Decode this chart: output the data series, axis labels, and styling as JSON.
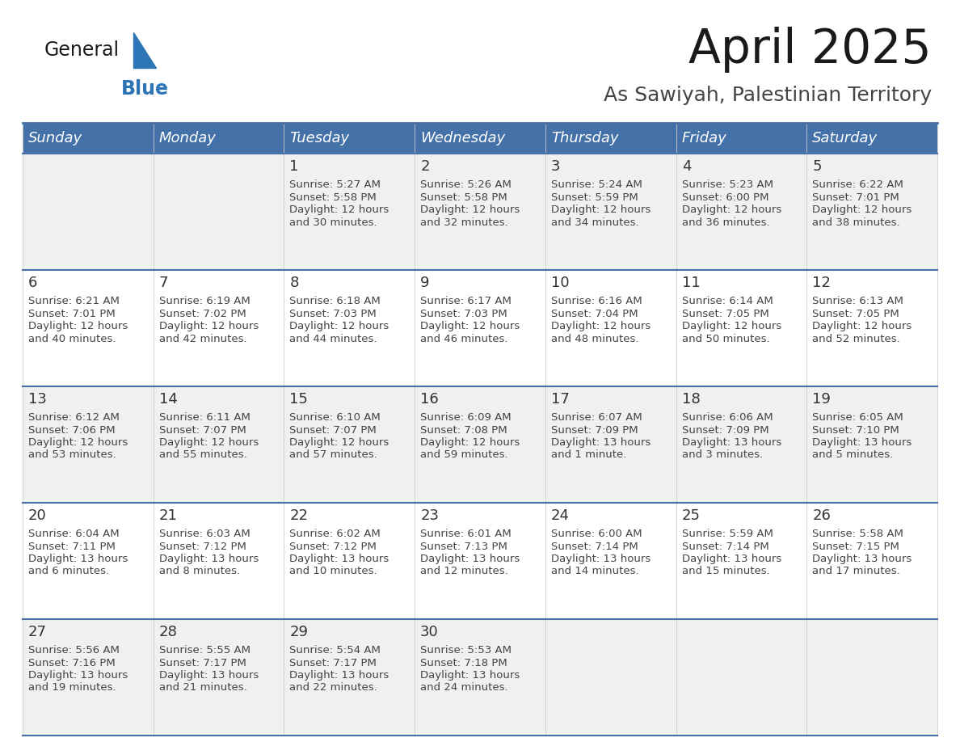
{
  "title": "April 2025",
  "subtitle": "As Sawiyah, Palestinian Territory",
  "header_bg_color": "#4472a8",
  "header_text_color": "#ffffff",
  "row_bg_odd": "#f0f0f0",
  "row_bg_even": "#ffffff",
  "border_color": "#4472a8",
  "text_color": "#333333",
  "day_num_color": "#333333",
  "info_color": "#444444",
  "day_headers": [
    "Sunday",
    "Monday",
    "Tuesday",
    "Wednesday",
    "Thursday",
    "Friday",
    "Saturday"
  ],
  "calendar_data": [
    [
      {
        "day": "",
        "info": ""
      },
      {
        "day": "",
        "info": ""
      },
      {
        "day": "1",
        "info": "Sunrise: 5:27 AM\nSunset: 5:58 PM\nDaylight: 12 hours\nand 30 minutes."
      },
      {
        "day": "2",
        "info": "Sunrise: 5:26 AM\nSunset: 5:58 PM\nDaylight: 12 hours\nand 32 minutes."
      },
      {
        "day": "3",
        "info": "Sunrise: 5:24 AM\nSunset: 5:59 PM\nDaylight: 12 hours\nand 34 minutes."
      },
      {
        "day": "4",
        "info": "Sunrise: 5:23 AM\nSunset: 6:00 PM\nDaylight: 12 hours\nand 36 minutes."
      },
      {
        "day": "5",
        "info": "Sunrise: 6:22 AM\nSunset: 7:01 PM\nDaylight: 12 hours\nand 38 minutes."
      }
    ],
    [
      {
        "day": "6",
        "info": "Sunrise: 6:21 AM\nSunset: 7:01 PM\nDaylight: 12 hours\nand 40 minutes."
      },
      {
        "day": "7",
        "info": "Sunrise: 6:19 AM\nSunset: 7:02 PM\nDaylight: 12 hours\nand 42 minutes."
      },
      {
        "day": "8",
        "info": "Sunrise: 6:18 AM\nSunset: 7:03 PM\nDaylight: 12 hours\nand 44 minutes."
      },
      {
        "day": "9",
        "info": "Sunrise: 6:17 AM\nSunset: 7:03 PM\nDaylight: 12 hours\nand 46 minutes."
      },
      {
        "day": "10",
        "info": "Sunrise: 6:16 AM\nSunset: 7:04 PM\nDaylight: 12 hours\nand 48 minutes."
      },
      {
        "day": "11",
        "info": "Sunrise: 6:14 AM\nSunset: 7:05 PM\nDaylight: 12 hours\nand 50 minutes."
      },
      {
        "day": "12",
        "info": "Sunrise: 6:13 AM\nSunset: 7:05 PM\nDaylight: 12 hours\nand 52 minutes."
      }
    ],
    [
      {
        "day": "13",
        "info": "Sunrise: 6:12 AM\nSunset: 7:06 PM\nDaylight: 12 hours\nand 53 minutes."
      },
      {
        "day": "14",
        "info": "Sunrise: 6:11 AM\nSunset: 7:07 PM\nDaylight: 12 hours\nand 55 minutes."
      },
      {
        "day": "15",
        "info": "Sunrise: 6:10 AM\nSunset: 7:07 PM\nDaylight: 12 hours\nand 57 minutes."
      },
      {
        "day": "16",
        "info": "Sunrise: 6:09 AM\nSunset: 7:08 PM\nDaylight: 12 hours\nand 59 minutes."
      },
      {
        "day": "17",
        "info": "Sunrise: 6:07 AM\nSunset: 7:09 PM\nDaylight: 13 hours\nand 1 minute."
      },
      {
        "day": "18",
        "info": "Sunrise: 6:06 AM\nSunset: 7:09 PM\nDaylight: 13 hours\nand 3 minutes."
      },
      {
        "day": "19",
        "info": "Sunrise: 6:05 AM\nSunset: 7:10 PM\nDaylight: 13 hours\nand 5 minutes."
      }
    ],
    [
      {
        "day": "20",
        "info": "Sunrise: 6:04 AM\nSunset: 7:11 PM\nDaylight: 13 hours\nand 6 minutes."
      },
      {
        "day": "21",
        "info": "Sunrise: 6:03 AM\nSunset: 7:12 PM\nDaylight: 13 hours\nand 8 minutes."
      },
      {
        "day": "22",
        "info": "Sunrise: 6:02 AM\nSunset: 7:12 PM\nDaylight: 13 hours\nand 10 minutes."
      },
      {
        "day": "23",
        "info": "Sunrise: 6:01 AM\nSunset: 7:13 PM\nDaylight: 13 hours\nand 12 minutes."
      },
      {
        "day": "24",
        "info": "Sunrise: 6:00 AM\nSunset: 7:14 PM\nDaylight: 13 hours\nand 14 minutes."
      },
      {
        "day": "25",
        "info": "Sunrise: 5:59 AM\nSunset: 7:14 PM\nDaylight: 13 hours\nand 15 minutes."
      },
      {
        "day": "26",
        "info": "Sunrise: 5:58 AM\nSunset: 7:15 PM\nDaylight: 13 hours\nand 17 minutes."
      }
    ],
    [
      {
        "day": "27",
        "info": "Sunrise: 5:56 AM\nSunset: 7:16 PM\nDaylight: 13 hours\nand 19 minutes."
      },
      {
        "day": "28",
        "info": "Sunrise: 5:55 AM\nSunset: 7:17 PM\nDaylight: 13 hours\nand 21 minutes."
      },
      {
        "day": "29",
        "info": "Sunrise: 5:54 AM\nSunset: 7:17 PM\nDaylight: 13 hours\nand 22 minutes."
      },
      {
        "day": "30",
        "info": "Sunrise: 5:53 AM\nSunset: 7:18 PM\nDaylight: 13 hours\nand 24 minutes."
      },
      {
        "day": "",
        "info": ""
      },
      {
        "day": "",
        "info": ""
      },
      {
        "day": "",
        "info": ""
      }
    ]
  ],
  "logo_general_color": "#1a1a1a",
  "logo_blue_color": "#2e75b6",
  "logo_triangle_color": "#2e75b6",
  "title_fontsize": 42,
  "subtitle_fontsize": 18,
  "header_fontsize": 13,
  "day_num_fontsize": 13,
  "info_fontsize": 9.5
}
